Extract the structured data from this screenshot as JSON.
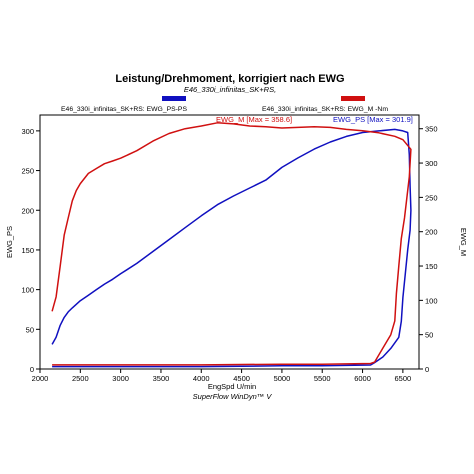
{
  "chart_data": {
    "type": "line",
    "title": "Leistung/Drehmoment, korrigiert nach EWG",
    "subtitle": "E46_330i_infinitas_SK+RS,",
    "xlabel": "EngSpd U/min",
    "ylabel_left": "EWG_PS",
    "ylabel_right": "EWG_M",
    "footer": "SuperFlow WinDyn™ V",
    "xlim": [
      2000,
      6700
    ],
    "ylim_left": [
      0,
      320
    ],
    "ylim_right": [
      0,
      370
    ],
    "x_ticks": [
      2000,
      2500,
      3000,
      3500,
      4000,
      4500,
      5000,
      5500,
      6000,
      6500
    ],
    "y_ticks_left": [
      0,
      50,
      100,
      150,
      200,
      250,
      300
    ],
    "y_ticks_right": [
      0,
      50,
      100,
      150,
      200,
      250,
      300,
      350
    ],
    "grid": false,
    "series": [
      {
        "name": "E46_330i_infinitas_SK+RS: EWG_PS-PS",
        "axis": "left",
        "color": "#1010c0",
        "annotation": "EWG_PS [Max = 301.9]",
        "points": [
          [
            2150,
            31
          ],
          [
            2200,
            40
          ],
          [
            2250,
            55
          ],
          [
            2300,
            65
          ],
          [
            2350,
            72
          ],
          [
            2400,
            77
          ],
          [
            2500,
            86
          ],
          [
            2600,
            93
          ],
          [
            2700,
            100
          ],
          [
            2800,
            107
          ],
          [
            2900,
            113
          ],
          [
            3000,
            120
          ],
          [
            3200,
            133
          ],
          [
            3400,
            148
          ],
          [
            3600,
            163
          ],
          [
            3800,
            178
          ],
          [
            4000,
            193
          ],
          [
            4200,
            207
          ],
          [
            4400,
            218
          ],
          [
            4600,
            228
          ],
          [
            4800,
            238
          ],
          [
            5000,
            254
          ],
          [
            5200,
            266
          ],
          [
            5400,
            277
          ],
          [
            5600,
            286
          ],
          [
            5800,
            293
          ],
          [
            6000,
            298
          ],
          [
            6200,
            300
          ],
          [
            6400,
            301.9
          ],
          [
            6500,
            300
          ],
          [
            6560,
            298
          ],
          [
            6580,
            270
          ],
          [
            6590,
            230
          ],
          [
            6600,
            200
          ],
          [
            6590,
            175
          ],
          [
            6560,
            150
          ],
          [
            6530,
            120
          ],
          [
            6500,
            90
          ],
          [
            6480,
            60
          ],
          [
            6450,
            40
          ],
          [
            6350,
            26
          ],
          [
            6250,
            15
          ],
          [
            6150,
            8
          ],
          [
            6100,
            5
          ],
          [
            5500,
            4
          ],
          [
            5000,
            4
          ],
          [
            4000,
            3
          ],
          [
            3000,
            3
          ],
          [
            2150,
            3
          ]
        ]
      },
      {
        "name": "E46_330i_infinitas_SK+RS: EWG_M -Nm",
        "axis": "right",
        "color": "#d01010",
        "annotation": "EWG_M [Max = 358.6]",
        "points": [
          [
            2150,
            84
          ],
          [
            2200,
            105
          ],
          [
            2250,
            150
          ],
          [
            2300,
            195
          ],
          [
            2350,
            220
          ],
          [
            2400,
            245
          ],
          [
            2450,
            260
          ],
          [
            2500,
            270
          ],
          [
            2600,
            285
          ],
          [
            2700,
            292
          ],
          [
            2800,
            299
          ],
          [
            2900,
            303
          ],
          [
            3000,
            307
          ],
          [
            3200,
            318
          ],
          [
            3400,
            332
          ],
          [
            3600,
            343
          ],
          [
            3800,
            350
          ],
          [
            4000,
            354
          ],
          [
            4200,
            358.6
          ],
          [
            4400,
            357
          ],
          [
            4600,
            354
          ],
          [
            4800,
            353
          ],
          [
            5000,
            351
          ],
          [
            5200,
            352
          ],
          [
            5400,
            353
          ],
          [
            5600,
            352
          ],
          [
            5800,
            349
          ],
          [
            6000,
            347
          ],
          [
            6200,
            344
          ],
          [
            6400,
            339
          ],
          [
            6500,
            334
          ],
          [
            6600,
            320
          ],
          [
            6580,
            280
          ],
          [
            6550,
            250
          ],
          [
            6520,
            220
          ],
          [
            6480,
            190
          ],
          [
            6450,
            150
          ],
          [
            6420,
            110
          ],
          [
            6400,
            70
          ],
          [
            6350,
            50
          ],
          [
            6250,
            30
          ],
          [
            6150,
            10
          ],
          [
            6100,
            8
          ],
          [
            5500,
            7
          ],
          [
            5000,
            7
          ],
          [
            4000,
            6
          ],
          [
            3000,
            6
          ],
          [
            2150,
            6
          ]
        ]
      }
    ]
  }
}
